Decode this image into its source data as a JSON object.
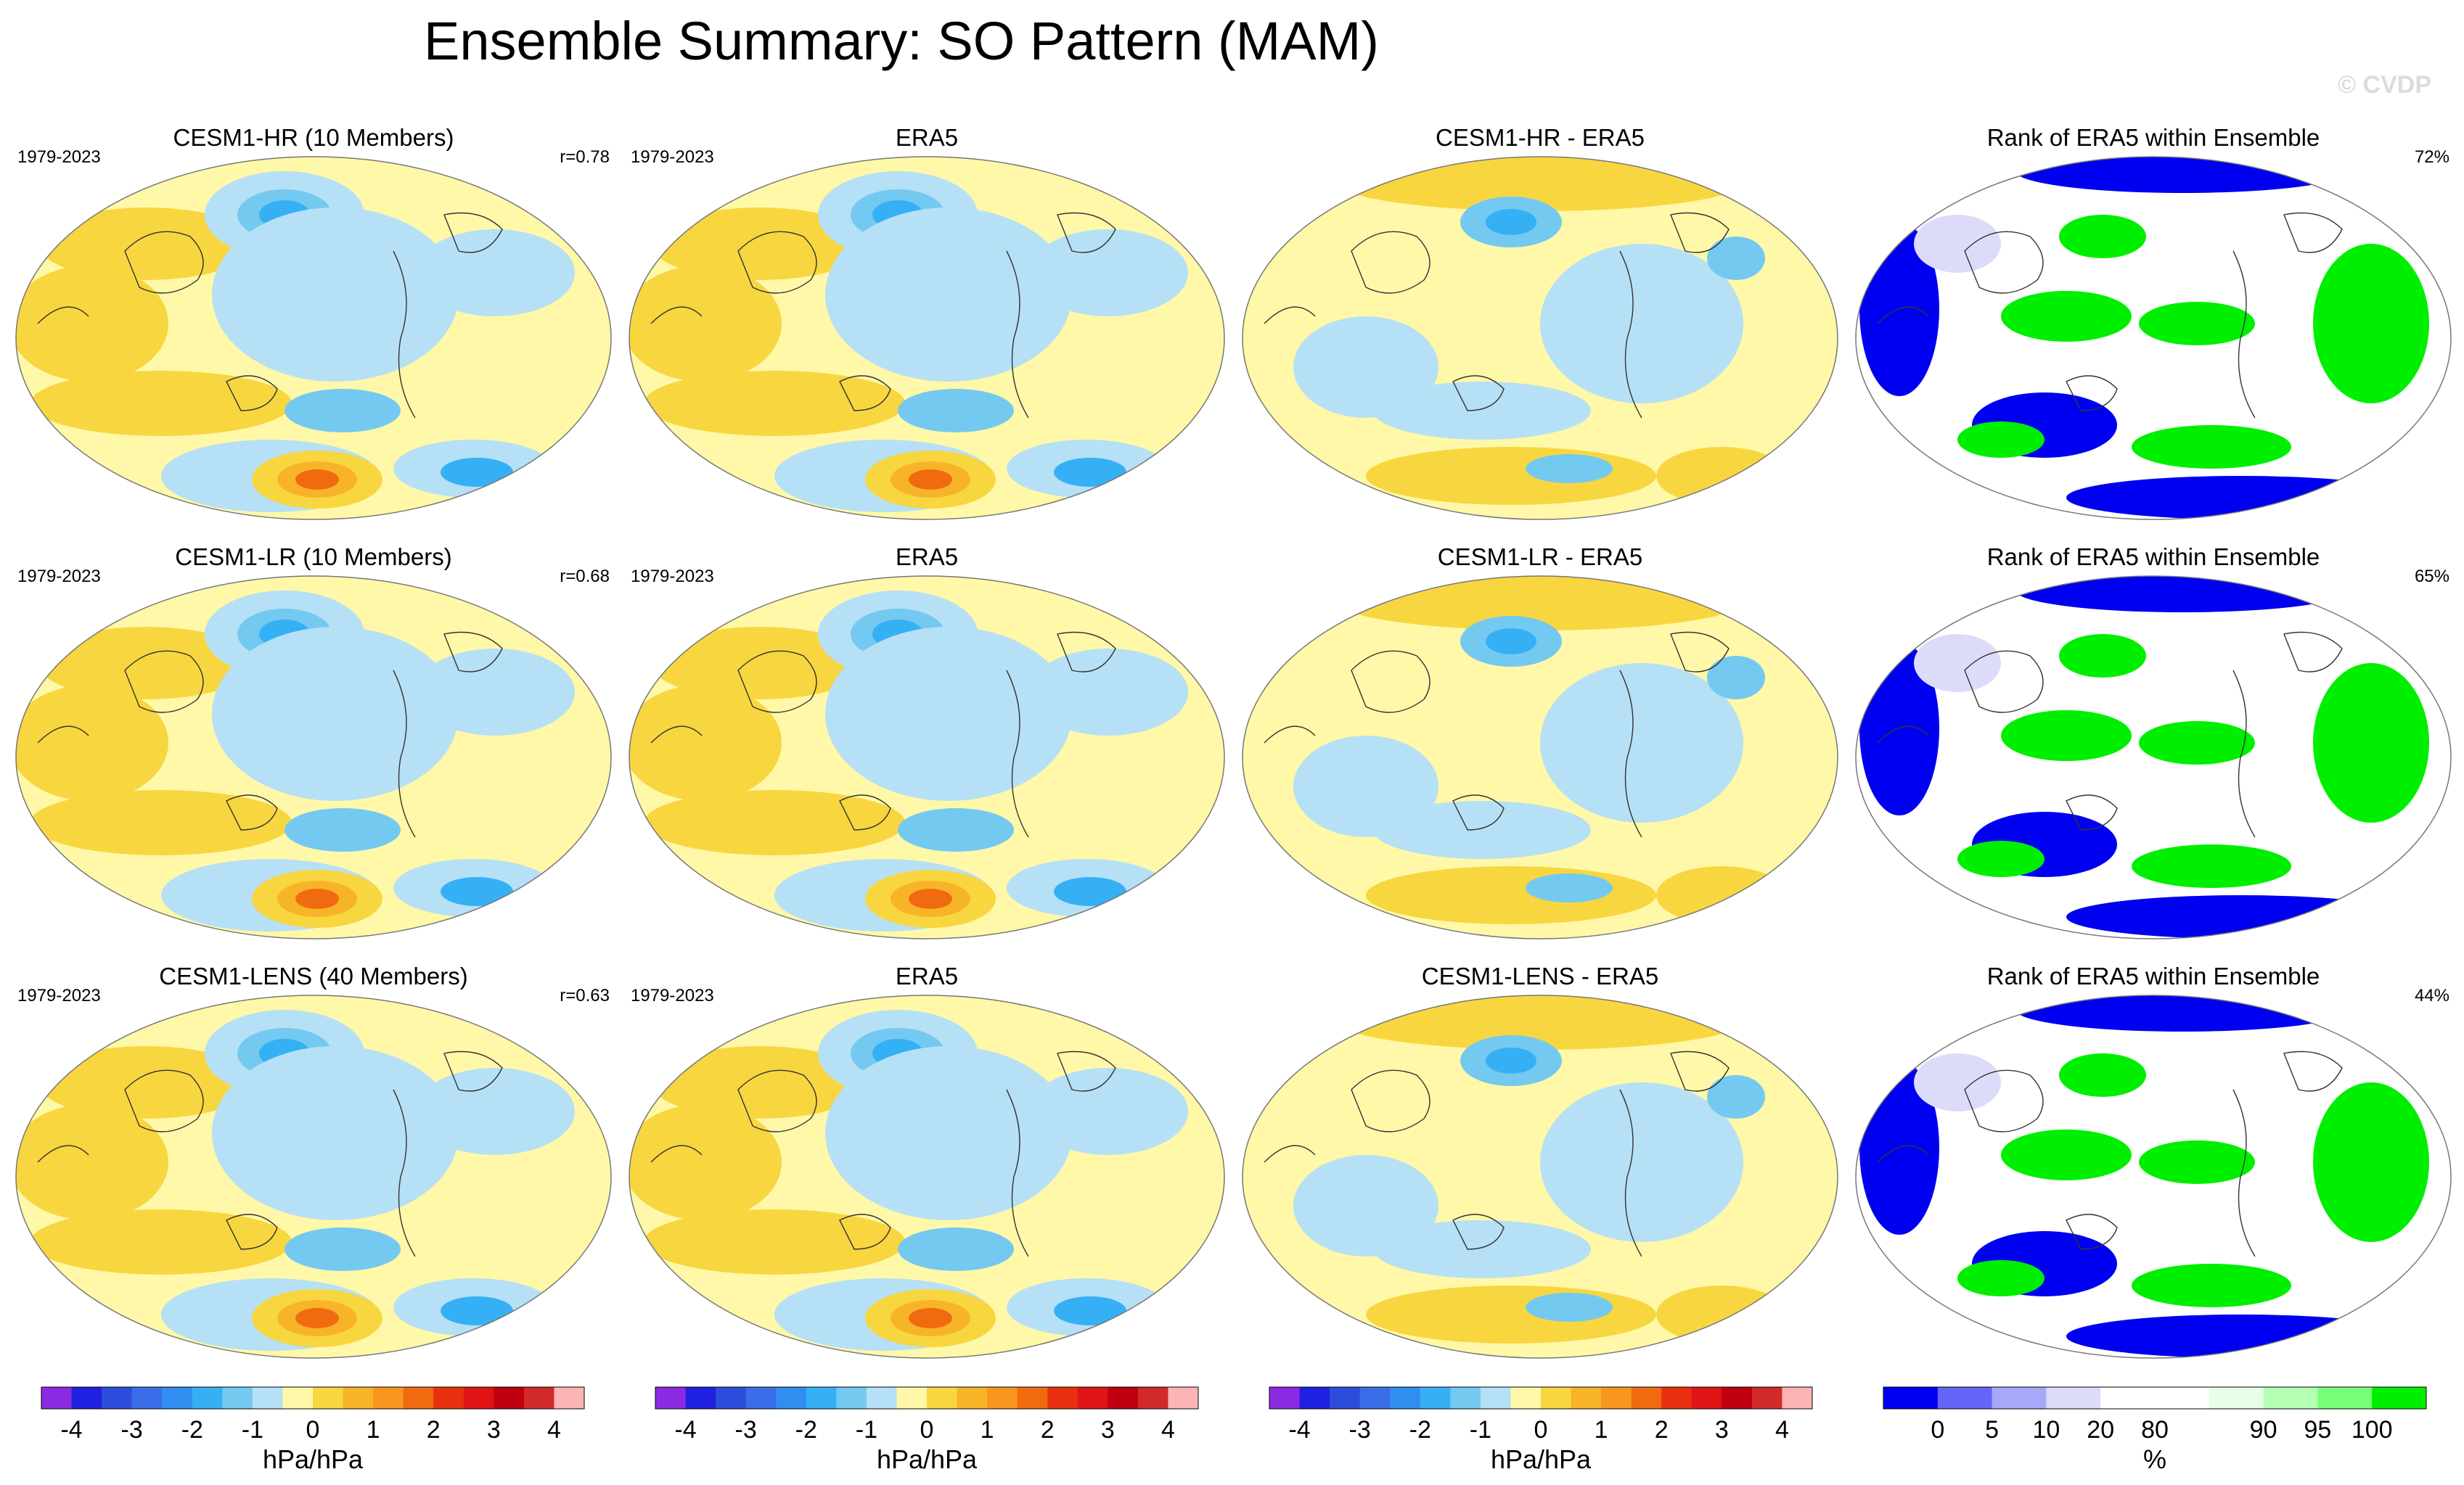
{
  "title": "Ensemble Summary: SO Pattern (MAM)",
  "watermark": "© CVDP",
  "chart_data": [
    {
      "type": "heatmap",
      "row": 0,
      "col": 0,
      "title": "CESM1-HR (10 Members)",
      "period": "1979-2023",
      "stat": "r=0.78"
    },
    {
      "type": "heatmap",
      "row": 0,
      "col": 1,
      "title": "ERA5",
      "period": "1979-2023",
      "stat": ""
    },
    {
      "type": "heatmap",
      "row": 0,
      "col": 2,
      "title": "CESM1-HR - ERA5",
      "period": "",
      "stat": ""
    },
    {
      "type": "heatmap",
      "row": 0,
      "col": 3,
      "title": "Rank of ERA5 within Ensemble",
      "period": "",
      "stat": "72%"
    },
    {
      "type": "heatmap",
      "row": 1,
      "col": 0,
      "title": "CESM1-LR (10 Members)",
      "period": "1979-2023",
      "stat": "r=0.68"
    },
    {
      "type": "heatmap",
      "row": 1,
      "col": 1,
      "title": "ERA5",
      "period": "1979-2023",
      "stat": ""
    },
    {
      "type": "heatmap",
      "row": 1,
      "col": 2,
      "title": "CESM1-LR - ERA5",
      "period": "",
      "stat": ""
    },
    {
      "type": "heatmap",
      "row": 1,
      "col": 3,
      "title": "Rank of ERA5 within Ensemble",
      "period": "",
      "stat": "65%"
    },
    {
      "type": "heatmap",
      "row": 2,
      "col": 0,
      "title": "CESM1-LENS (40 Members)",
      "period": "1979-2023",
      "stat": "r=0.63"
    },
    {
      "type": "heatmap",
      "row": 2,
      "col": 1,
      "title": "ERA5",
      "period": "1979-2023",
      "stat": ""
    },
    {
      "type": "heatmap",
      "row": 2,
      "col": 2,
      "title": "CESM1-LENS - ERA5",
      "period": "",
      "stat": ""
    },
    {
      "type": "heatmap",
      "row": 2,
      "col": 3,
      "title": "Rank of ERA5 within Ensemble",
      "period": "",
      "stat": "44%"
    }
  ],
  "colorbars": [
    {
      "label": "hPa/hPa",
      "ticks": [
        "-4",
        "-3",
        "-2",
        "-1",
        "0",
        "1",
        "2",
        "3",
        "4"
      ],
      "colors": [
        "#8a2be2",
        "#2020e0",
        "#2c4ddc",
        "#3a6ee8",
        "#2f8ef0",
        "#36b0f5",
        "#74c9f0",
        "#b6e0f5",
        "#fff8a8",
        "#f8d640",
        "#f8b428",
        "#f89620",
        "#f06a10",
        "#e83010",
        "#e01414",
        "#c00010",
        "#d22a2a",
        "#fdb4b4"
      ]
    },
    {
      "label": "hPa/hPa",
      "ticks": [
        "-4",
        "-3",
        "-2",
        "-1",
        "0",
        "1",
        "2",
        "3",
        "4"
      ],
      "colors": [
        "#8a2be2",
        "#2020e0",
        "#2c4ddc",
        "#3a6ee8",
        "#2f8ef0",
        "#36b0f5",
        "#74c9f0",
        "#b6e0f5",
        "#fff8a8",
        "#f8d640",
        "#f8b428",
        "#f89620",
        "#f06a10",
        "#e83010",
        "#e01414",
        "#c00010",
        "#d22a2a",
        "#fdb4b4"
      ]
    },
    {
      "label": "hPa/hPa",
      "ticks": [
        "-4",
        "-3",
        "-2",
        "-1",
        "0",
        "1",
        "2",
        "3",
        "4"
      ],
      "colors": [
        "#8a2be2",
        "#2020e0",
        "#2c4ddc",
        "#3a6ee8",
        "#2f8ef0",
        "#36b0f5",
        "#74c9f0",
        "#b6e0f5",
        "#fff8a8",
        "#f8d640",
        "#f8b428",
        "#f89620",
        "#f06a10",
        "#e83010",
        "#e01414",
        "#c00010",
        "#d22a2a",
        "#fdb4b4"
      ]
    },
    {
      "label": "%",
      "ticks": [
        "0",
        "5",
        "10",
        "20",
        "80",
        "90",
        "95",
        "100"
      ],
      "colors": [
        "#0000f0",
        "#6464f8",
        "#a8a8f8",
        "#dcdcfa",
        "#ffffff",
        "#ffffff",
        "#e6ffe6",
        "#b4ffb4",
        "#78ff78",
        "#00ef00"
      ]
    }
  ]
}
